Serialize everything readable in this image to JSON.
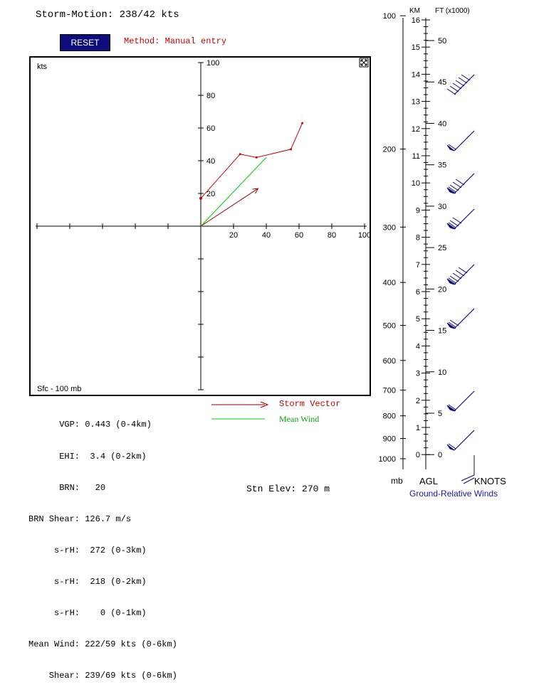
{
  "header": {
    "storm_motion": "Storm-Motion: 238/42 kts",
    "reset_label": "RESET",
    "method": "Method:  Manual entry"
  },
  "hodograph": {
    "units_label": "kts",
    "layer_label": "Sfc - 100 mb",
    "expand_icon": "expand-icon"
  },
  "stats_lines": [
    "      VGP: 0.443 (0-4km)",
    "      EHI:  3.4 (0-2km)",
    "      BRN:   20",
    "BRN Shear: 126.7 m/s",
    "     s-rH:  272 (0-3km)",
    "     s-rH:  218 (0-2km)",
    "     s-rH:    0 (0-1km)",
    "Mean Wind: 222/59 kts (0-6km)",
    "    Shear: 239/69 kts (0-6km)"
  ],
  "legend": {
    "storm_vector": "Storm Vector",
    "mean_wind": "Mean Wind",
    "storm_color": "#990000",
    "mean_color": "#00cc00"
  },
  "station": {
    "elevation": "Stn Elev:  270 m"
  },
  "profile": {
    "km_header": "KM",
    "ft_header": "FT (x1000)",
    "agl_label": "AGL",
    "knots_label": "KNOTS",
    "title": "Ground-Relative Winds",
    "km_labels": [
      "16",
      "15",
      "14",
      "13",
      "12",
      "11",
      "10",
      "9",
      "8",
      "7",
      "6",
      "5",
      "4",
      "3",
      "2",
      "1",
      "0"
    ],
    "ft_labels": [
      "50",
      "45",
      "40",
      "35",
      "30",
      "25",
      "20",
      "15",
      "10",
      "5",
      "0"
    ],
    "mb_labels": [
      "100",
      "200",
      "300",
      "400",
      "500",
      "600",
      "700",
      "800",
      "900",
      "1000"
    ],
    "mb_footer": "mb",
    "barb_color": "#0c0c7a"
  },
  "chart_data": {
    "type": "scatter",
    "title": "",
    "xlabel": "",
    "ylabel": "kts",
    "xlim": [
      -100,
      100
    ],
    "ylim": [
      -100,
      100
    ],
    "x_tick_labels": [
      "20",
      "40",
      "60",
      "80",
      "100"
    ],
    "y_tick_labels": [
      "20",
      "40",
      "60",
      "80",
      "100"
    ],
    "series": [
      {
        "name": "Hodograph",
        "color": "#cc0000",
        "points": [
          [
            0,
            17
          ],
          [
            24,
            44
          ],
          [
            34,
            42
          ],
          [
            55,
            47
          ],
          [
            62,
            63
          ]
        ]
      },
      {
        "name": "Storm Vector",
        "color": "#990000",
        "points": [
          [
            0,
            0
          ],
          [
            35,
            23
          ]
        ]
      },
      {
        "name": "Mean Wind",
        "color": "#00cc00",
        "points": [
          [
            0,
            0
          ],
          [
            40,
            42
          ]
        ]
      }
    ],
    "grid": false
  }
}
